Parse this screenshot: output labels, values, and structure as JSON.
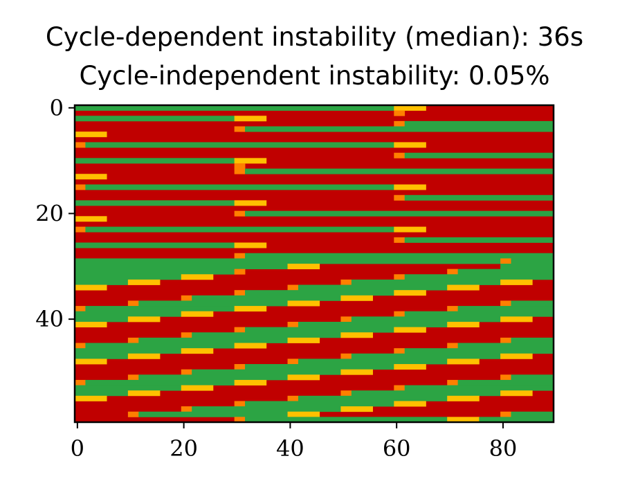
{
  "chart_data": {
    "type": "heatmap",
    "title": "Cycle-dependent instability (median): 36s",
    "subtitle": "Cycle-independent instability: 0.05%",
    "xlabel": "",
    "ylabel": "",
    "xlim": [
      -0.5,
      89.5
    ],
    "ylim": [
      59.5,
      -0.5
    ],
    "rows": 60,
    "cols": 90,
    "x_ticks": [
      0,
      20,
      40,
      60,
      80
    ],
    "y_ticks": [
      0,
      20,
      40
    ],
    "grid": false,
    "legend": "none",
    "colors": {
      "red": "#c00000",
      "green": "#2ca444",
      "yellow": "#ffc000",
      "orange": "#ff8000"
    },
    "cell_values": {
      "0": "red",
      "1": "green",
      "2": "yellow",
      "3": "orange"
    },
    "runs": [
      [
        [
          0,
          60,
          1
        ],
        [
          60,
          66,
          2
        ],
        [
          66,
          90,
          0
        ]
      ],
      [
        [
          0,
          60,
          0
        ],
        [
          60,
          62,
          3
        ],
        [
          62,
          90,
          0
        ]
      ],
      [
        [
          0,
          30,
          1
        ],
        [
          30,
          36,
          2
        ],
        [
          36,
          90,
          0
        ]
      ],
      [
        [
          0,
          60,
          0
        ],
        [
          60,
          62,
          3
        ],
        [
          62,
          90,
          1
        ]
      ],
      [
        [
          0,
          30,
          0
        ],
        [
          30,
          32,
          3
        ],
        [
          32,
          90,
          1
        ]
      ],
      [
        [
          0,
          6,
          2
        ],
        [
          6,
          90,
          0
        ]
      ],
      [
        [
          0,
          90,
          0
        ]
      ],
      [
        [
          0,
          2,
          3
        ],
        [
          2,
          60,
          1
        ],
        [
          60,
          66,
          2
        ],
        [
          66,
          90,
          0
        ]
      ],
      [
        [
          0,
          90,
          0
        ]
      ],
      [
        [
          0,
          60,
          0
        ],
        [
          60,
          62,
          3
        ],
        [
          62,
          90,
          1
        ]
      ],
      [
        [
          0,
          30,
          1
        ],
        [
          30,
          36,
          2
        ],
        [
          36,
          90,
          0
        ]
      ],
      [
        [
          0,
          30,
          0
        ],
        [
          30,
          32,
          3
        ],
        [
          32,
          90,
          0
        ]
      ],
      [
        [
          0,
          30,
          0
        ],
        [
          30,
          32,
          3
        ],
        [
          32,
          90,
          1
        ]
      ],
      [
        [
          0,
          6,
          2
        ],
        [
          6,
          90,
          0
        ]
      ],
      [
        [
          0,
          90,
          0
        ]
      ],
      [
        [
          0,
          2,
          3
        ],
        [
          2,
          60,
          1
        ],
        [
          60,
          66,
          2
        ],
        [
          66,
          90,
          0
        ]
      ],
      [
        [
          0,
          90,
          0
        ]
      ],
      [
        [
          0,
          60,
          0
        ],
        [
          60,
          62,
          3
        ],
        [
          62,
          90,
          1
        ]
      ],
      [
        [
          0,
          30,
          1
        ],
        [
          30,
          36,
          2
        ],
        [
          36,
          90,
          0
        ]
      ],
      [
        [
          0,
          90,
          0
        ]
      ],
      [
        [
          0,
          30,
          0
        ],
        [
          30,
          32,
          3
        ],
        [
          32,
          90,
          1
        ]
      ],
      [
        [
          0,
          6,
          2
        ],
        [
          6,
          90,
          0
        ]
      ],
      [
        [
          0,
          90,
          0
        ]
      ],
      [
        [
          0,
          2,
          3
        ],
        [
          2,
          60,
          1
        ],
        [
          60,
          66,
          2
        ],
        [
          66,
          90,
          0
        ]
      ],
      [
        [
          0,
          90,
          0
        ]
      ],
      [
        [
          0,
          60,
          0
        ],
        [
          60,
          62,
          3
        ],
        [
          62,
          90,
          1
        ]
      ],
      [
        [
          0,
          30,
          1
        ],
        [
          30,
          36,
          2
        ],
        [
          36,
          90,
          0
        ]
      ],
      [
        [
          0,
          90,
          0
        ]
      ],
      [
        [
          0,
          30,
          0
        ],
        [
          30,
          32,
          3
        ],
        [
          32,
          90,
          1
        ]
      ],
      [
        [
          0,
          80,
          1
        ],
        [
          80,
          82,
          3
        ],
        [
          82,
          90,
          1
        ]
      ],
      [
        [
          0,
          30,
          1
        ],
        [
          30,
          40,
          1
        ],
        [
          40,
          46,
          2
        ],
        [
          46,
          80,
          0
        ],
        [
          80,
          90,
          1
        ]
      ],
      [
        [
          0,
          30,
          1
        ],
        [
          30,
          32,
          3
        ],
        [
          32,
          70,
          0
        ],
        [
          70,
          72,
          3
        ],
        [
          72,
          90,
          1
        ]
      ],
      [
        [
          0,
          20,
          1
        ],
        [
          20,
          26,
          2
        ],
        [
          26,
          60,
          0
        ],
        [
          60,
          62,
          3
        ],
        [
          62,
          90,
          1
        ]
      ],
      [
        [
          0,
          10,
          1
        ],
        [
          10,
          16,
          2
        ],
        [
          16,
          50,
          0
        ],
        [
          50,
          52,
          3
        ],
        [
          52,
          80,
          1
        ],
        [
          80,
          86,
          2
        ],
        [
          86,
          90,
          0
        ]
      ],
      [
        [
          0,
          6,
          2
        ],
        [
          6,
          40,
          0
        ],
        [
          40,
          42,
          3
        ],
        [
          42,
          70,
          1
        ],
        [
          70,
          76,
          2
        ],
        [
          76,
          90,
          0
        ]
      ],
      [
        [
          0,
          30,
          0
        ],
        [
          30,
          32,
          3
        ],
        [
          32,
          60,
          1
        ],
        [
          60,
          66,
          2
        ],
        [
          66,
          90,
          0
        ]
      ],
      [
        [
          0,
          20,
          0
        ],
        [
          20,
          22,
          3
        ],
        [
          22,
          50,
          1
        ],
        [
          50,
          56,
          2
        ],
        [
          56,
          90,
          0
        ]
      ],
      [
        [
          0,
          10,
          0
        ],
        [
          10,
          12,
          3
        ],
        [
          12,
          40,
          1
        ],
        [
          40,
          46,
          2
        ],
        [
          46,
          80,
          0
        ],
        [
          80,
          82,
          3
        ],
        [
          82,
          90,
          1
        ]
      ],
      [
        [
          0,
          2,
          3
        ],
        [
          2,
          30,
          1
        ],
        [
          30,
          36,
          2
        ],
        [
          36,
          70,
          0
        ],
        [
          70,
          72,
          3
        ],
        [
          72,
          90,
          1
        ]
      ],
      [
        [
          0,
          20,
          1
        ],
        [
          20,
          26,
          2
        ],
        [
          26,
          60,
          0
        ],
        [
          60,
          62,
          3
        ],
        [
          62,
          90,
          1
        ]
      ],
      [
        [
          0,
          10,
          1
        ],
        [
          10,
          16,
          2
        ],
        [
          16,
          50,
          0
        ],
        [
          50,
          52,
          3
        ],
        [
          52,
          80,
          1
        ],
        [
          80,
          86,
          2
        ],
        [
          86,
          90,
          0
        ]
      ],
      [
        [
          0,
          6,
          2
        ],
        [
          6,
          40,
          0
        ],
        [
          40,
          42,
          3
        ],
        [
          42,
          70,
          1
        ],
        [
          70,
          76,
          2
        ],
        [
          76,
          90,
          0
        ]
      ],
      [
        [
          0,
          30,
          0
        ],
        [
          30,
          32,
          3
        ],
        [
          32,
          60,
          1
        ],
        [
          60,
          66,
          2
        ],
        [
          66,
          90,
          0
        ]
      ],
      [
        [
          0,
          20,
          0
        ],
        [
          20,
          22,
          3
        ],
        [
          22,
          50,
          1
        ],
        [
          50,
          56,
          2
        ],
        [
          56,
          90,
          0
        ]
      ],
      [
        [
          0,
          10,
          0
        ],
        [
          10,
          12,
          3
        ],
        [
          12,
          40,
          1
        ],
        [
          40,
          46,
          2
        ],
        [
          46,
          80,
          0
        ],
        [
          80,
          82,
          3
        ],
        [
          82,
          90,
          1
        ]
      ],
      [
        [
          0,
          2,
          3
        ],
        [
          2,
          30,
          1
        ],
        [
          30,
          36,
          2
        ],
        [
          36,
          70,
          0
        ],
        [
          70,
          72,
          3
        ],
        [
          72,
          90,
          1
        ]
      ],
      [
        [
          0,
          20,
          1
        ],
        [
          20,
          26,
          2
        ],
        [
          26,
          60,
          0
        ],
        [
          60,
          62,
          3
        ],
        [
          62,
          90,
          1
        ]
      ],
      [
        [
          0,
          10,
          1
        ],
        [
          10,
          16,
          2
        ],
        [
          16,
          50,
          0
        ],
        [
          50,
          52,
          3
        ],
        [
          52,
          80,
          1
        ],
        [
          80,
          86,
          2
        ],
        [
          86,
          90,
          0
        ]
      ],
      [
        [
          0,
          6,
          2
        ],
        [
          6,
          40,
          0
        ],
        [
          40,
          42,
          3
        ],
        [
          42,
          70,
          1
        ],
        [
          70,
          76,
          2
        ],
        [
          76,
          90,
          0
        ]
      ],
      [
        [
          0,
          30,
          0
        ],
        [
          30,
          32,
          3
        ],
        [
          32,
          60,
          1
        ],
        [
          60,
          66,
          2
        ],
        [
          66,
          90,
          0
        ]
      ],
      [
        [
          0,
          20,
          0
        ],
        [
          20,
          22,
          3
        ],
        [
          22,
          50,
          1
        ],
        [
          50,
          56,
          2
        ],
        [
          56,
          90,
          0
        ]
      ],
      [
        [
          0,
          10,
          0
        ],
        [
          10,
          12,
          3
        ],
        [
          12,
          40,
          1
        ],
        [
          40,
          46,
          2
        ],
        [
          46,
          80,
          0
        ],
        [
          80,
          82,
          3
        ],
        [
          82,
          90,
          1
        ]
      ],
      [
        [
          0,
          2,
          3
        ],
        [
          2,
          30,
          1
        ],
        [
          30,
          36,
          2
        ],
        [
          36,
          70,
          0
        ],
        [
          70,
          72,
          3
        ],
        [
          72,
          90,
          1
        ]
      ],
      [
        [
          0,
          20,
          1
        ],
        [
          20,
          26,
          2
        ],
        [
          26,
          60,
          0
        ],
        [
          60,
          62,
          3
        ],
        [
          62,
          90,
          1
        ]
      ],
      [
        [
          0,
          10,
          1
        ],
        [
          10,
          16,
          2
        ],
        [
          16,
          50,
          0
        ],
        [
          50,
          52,
          3
        ],
        [
          52,
          80,
          1
        ],
        [
          80,
          86,
          2
        ],
        [
          86,
          90,
          0
        ]
      ],
      [
        [
          0,
          6,
          2
        ],
        [
          6,
          40,
          0
        ],
        [
          40,
          42,
          3
        ],
        [
          42,
          70,
          1
        ],
        [
          70,
          76,
          2
        ],
        [
          76,
          90,
          0
        ]
      ],
      [
        [
          0,
          30,
          0
        ],
        [
          30,
          32,
          3
        ],
        [
          32,
          60,
          1
        ],
        [
          60,
          66,
          2
        ],
        [
          66,
          90,
          0
        ]
      ],
      [
        [
          0,
          20,
          0
        ],
        [
          20,
          22,
          3
        ],
        [
          22,
          50,
          1
        ],
        [
          50,
          56,
          2
        ],
        [
          56,
          90,
          0
        ]
      ],
      [
        [
          0,
          10,
          0
        ],
        [
          10,
          12,
          3
        ],
        [
          12,
          40,
          1
        ],
        [
          40,
          46,
          2
        ],
        [
          46,
          80,
          0
        ],
        [
          80,
          82,
          3
        ],
        [
          82,
          90,
          1
        ]
      ],
      [
        [
          0,
          30,
          0
        ],
        [
          30,
          32,
          3
        ],
        [
          32,
          70,
          1
        ],
        [
          70,
          76,
          2
        ],
        [
          76,
          90,
          1
        ]
      ]
    ]
  }
}
